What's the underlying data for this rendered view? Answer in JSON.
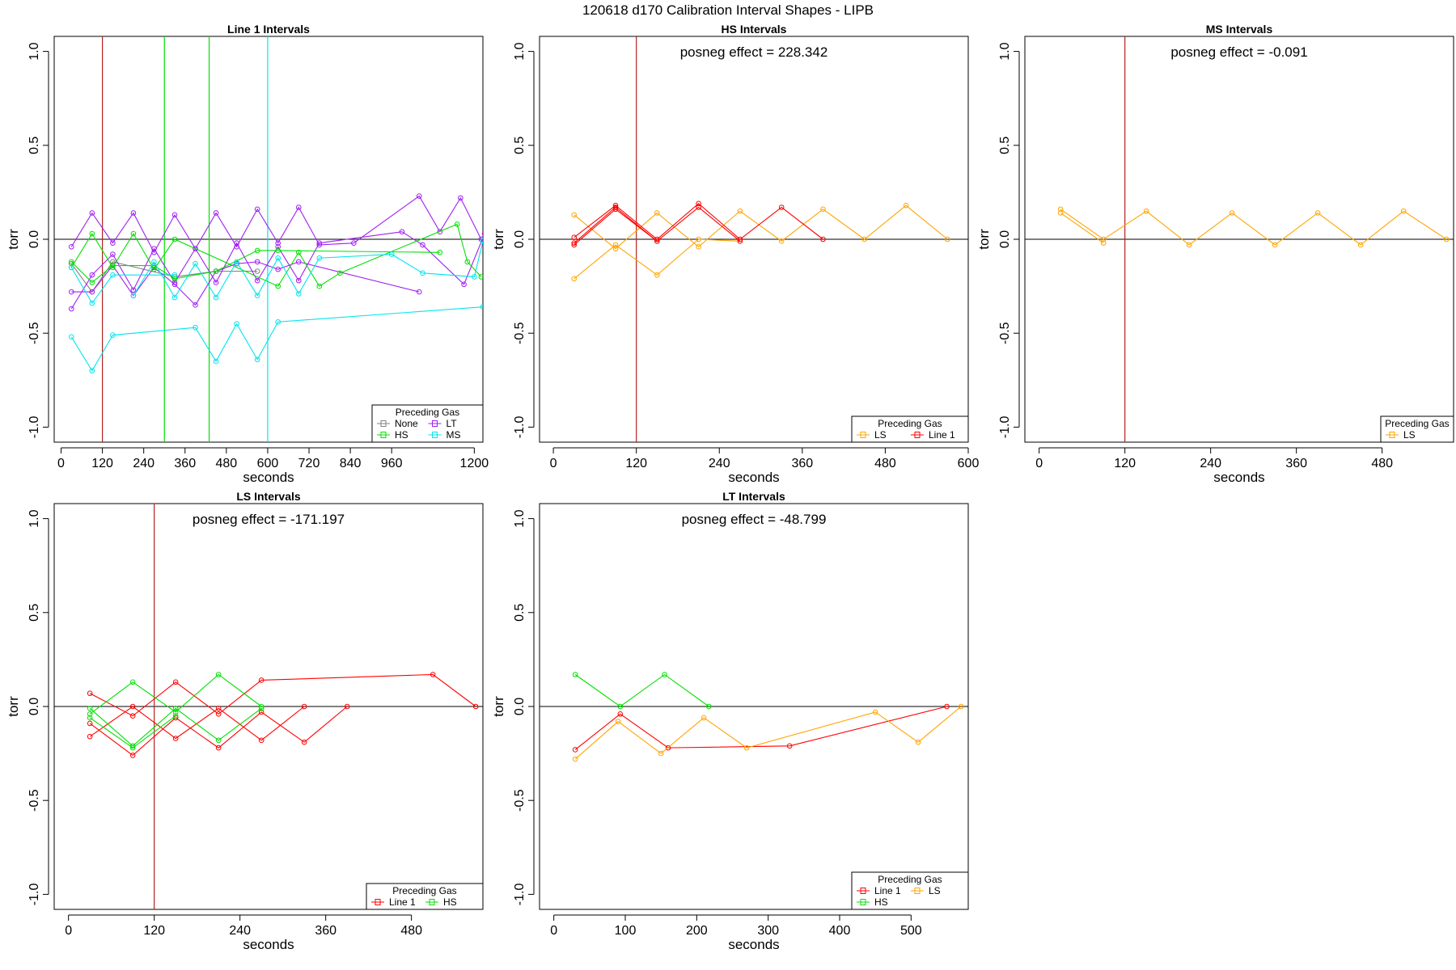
{
  "title": "120618   d170   Calibration Interval Shapes - LIPB",
  "colors": {
    "None": "#808080",
    "LT": "#a020f0",
    "HS": "#00e000",
    "MS": "#00e5ee",
    "LS": "#ffa500",
    "Line 1": "#ff0000",
    "refline": "#b22222"
  },
  "chart_data": [
    {
      "type": "line",
      "title": "Line 1 Intervals",
      "xlabel": "seconds",
      "ylabel": "torr",
      "xlim": [
        -20,
        1225
      ],
      "ylim": [
        -1.08,
        1.08
      ],
      "xticks": [
        0,
        120,
        240,
        360,
        480,
        600,
        720,
        840,
        960,
        1200
      ],
      "yticks": [
        -1.0,
        -0.5,
        0.0,
        0.5,
        1.0
      ],
      "vlines": [
        {
          "x": 120,
          "gas": "Line 1"
        },
        {
          "x": 300,
          "gas": "HS"
        },
        {
          "x": 430,
          "gas": "HS"
        },
        {
          "x": 600,
          "gas": "MS"
        }
      ],
      "annotation": "",
      "legend": {
        "title": "Preceding Gas",
        "items": [
          "None",
          "LT",
          "HS",
          "MS"
        ],
        "ncol": 2
      },
      "series": [
        {
          "gas": "None",
          "points": [
            [
              30,
              -0.13
            ],
            [
              90,
              -0.28
            ],
            [
              150,
              -0.12
            ],
            [
              330,
              -0.2
            ],
            [
              450,
              -0.17
            ],
            [
              570,
              -0.17
            ]
          ]
        },
        {
          "gas": "LT",
          "points": [
            [
              30,
              -0.37
            ],
            [
              90,
              -0.19
            ],
            [
              150,
              -0.08
            ],
            [
              210,
              -0.27
            ],
            [
              270,
              -0.05
            ],
            [
              330,
              -0.23
            ],
            [
              390,
              -0.05
            ],
            [
              450,
              -0.23
            ],
            [
              510,
              -0.02
            ],
            [
              570,
              -0.22
            ],
            [
              630,
              -0.04
            ],
            [
              690,
              -0.22
            ],
            [
              750,
              -0.02
            ],
            [
              990,
              0.04
            ],
            [
              1050,
              -0.03
            ],
            [
              1170,
              -0.24
            ],
            [
              1230,
              0.03
            ]
          ]
        },
        {
          "gas": "LT",
          "points": [
            [
              30,
              -0.04
            ],
            [
              90,
              0.14
            ],
            [
              150,
              -0.02
            ],
            [
              210,
              0.14
            ],
            [
              270,
              -0.07
            ],
            [
              330,
              0.13
            ],
            [
              390,
              -0.05
            ],
            [
              450,
              0.14
            ],
            [
              510,
              -0.04
            ],
            [
              570,
              0.16
            ],
            [
              630,
              -0.02
            ],
            [
              690,
              0.17
            ],
            [
              750,
              -0.03
            ],
            [
              850,
              -0.02
            ],
            [
              1040,
              0.23
            ],
            [
              1100,
              0.04
            ],
            [
              1160,
              0.22
            ],
            [
              1220,
              0.0
            ]
          ]
        },
        {
          "gas": "LT",
          "points": [
            [
              30,
              -0.28
            ],
            [
              90,
              -0.28
            ],
            [
              150,
              -0.14
            ],
            [
              210,
              -0.3
            ],
            [
              270,
              -0.15
            ],
            [
              330,
              -0.24
            ],
            [
              390,
              -0.35
            ],
            [
              450,
              -0.17
            ],
            [
              510,
              -0.13
            ],
            [
              570,
              -0.12
            ],
            [
              630,
              -0.16
            ],
            [
              690,
              -0.12
            ],
            [
              1040,
              -0.28
            ]
          ]
        },
        {
          "gas": "HS",
          "points": [
            [
              30,
              -0.15
            ],
            [
              90,
              0.03
            ],
            [
              150,
              -0.15
            ],
            [
              210,
              0.03
            ],
            [
              270,
              -0.16
            ],
            [
              330,
              0.0
            ],
            [
              630,
              -0.25
            ],
            [
              690,
              -0.07
            ],
            [
              750,
              -0.25
            ],
            [
              810,
              -0.18
            ],
            [
              1150,
              0.08
            ],
            [
              1180,
              -0.12
            ],
            [
              1220,
              -0.2
            ]
          ]
        },
        {
          "gas": "HS",
          "points": [
            [
              30,
              -0.12
            ],
            [
              90,
              -0.23
            ],
            [
              150,
              -0.14
            ],
            [
              270,
              -0.14
            ],
            [
              330,
              -0.21
            ],
            [
              450,
              -0.17
            ],
            [
              570,
              -0.06
            ],
            [
              630,
              -0.06
            ],
            [
              1100,
              -0.07
            ]
          ]
        },
        {
          "gas": "MS",
          "points": [
            [
              30,
              -0.15
            ],
            [
              90,
              -0.34
            ],
            [
              150,
              -0.19
            ],
            [
              330,
              -0.19
            ]
          ]
        },
        {
          "gas": "MS",
          "points": [
            [
              30,
              -0.52
            ],
            [
              90,
              -0.7
            ],
            [
              150,
              -0.51
            ],
            [
              390,
              -0.47
            ],
            [
              450,
              -0.65
            ],
            [
              510,
              -0.45
            ],
            [
              570,
              -0.64
            ],
            [
              630,
              -0.44
            ],
            [
              1225,
              -0.36
            ]
          ]
        },
        {
          "gas": "MS",
          "points": [
            [
              210,
              -0.3
            ],
            [
              270,
              -0.12
            ],
            [
              330,
              -0.31
            ],
            [
              390,
              -0.13
            ],
            [
              450,
              -0.31
            ],
            [
              510,
              -0.12
            ],
            [
              570,
              -0.3
            ],
            [
              630,
              -0.1
            ],
            [
              690,
              -0.29
            ],
            [
              750,
              -0.1
            ],
            [
              960,
              -0.08
            ],
            [
              1050,
              -0.18
            ],
            [
              1200,
              -0.2
            ],
            [
              1225,
              -0.01
            ]
          ]
        }
      ]
    },
    {
      "type": "line",
      "title": "HS Intervals",
      "xlabel": "seconds",
      "ylabel": "torr",
      "xlim": [
        -20,
        600
      ],
      "ylim": [
        -1.08,
        1.08
      ],
      "xticks": [
        0,
        120,
        240,
        360,
        480,
        600
      ],
      "yticks": [
        -1.0,
        -0.5,
        0.0,
        0.5,
        1.0
      ],
      "vlines": [
        {
          "x": 120,
          "gas": "Line 1"
        }
      ],
      "annotation": "posneg effect = 228.342",
      "legend": {
        "title": "Preceding Gas",
        "items": [
          "LS",
          "Line 1"
        ],
        "ncol": 2
      },
      "series": [
        {
          "gas": "LS",
          "points": [
            [
              30,
              0.13
            ],
            [
              90,
              -0.05
            ],
            [
              150,
              0.14
            ],
            [
              210,
              -0.04
            ],
            [
              270,
              0.15
            ],
            [
              330,
              -0.01
            ],
            [
              390,
              0.16
            ],
            [
              450,
              0.0
            ],
            [
              510,
              0.18
            ],
            [
              570,
              0.0
            ]
          ]
        },
        {
          "gas": "LS",
          "points": [
            [
              30,
              -0.21
            ],
            [
              90,
              -0.03
            ],
            [
              150,
              -0.19
            ],
            [
              210,
              0.0
            ],
            [
              270,
              -0.01
            ]
          ]
        },
        {
          "gas": "Line 1",
          "points": [
            [
              30,
              0.01
            ],
            [
              90,
              0.18
            ],
            [
              150,
              0.0
            ],
            [
              210,
              0.19
            ],
            [
              270,
              0.0
            ],
            [
              330,
              0.17
            ],
            [
              390,
              0.0
            ]
          ]
        },
        {
          "gas": "Line 1",
          "points": [
            [
              30,
              -0.02
            ],
            [
              90,
              0.17
            ],
            [
              150,
              -0.01
            ],
            [
              210,
              0.17
            ],
            [
              270,
              -0.01
            ]
          ]
        },
        {
          "gas": "Line 1",
          "points": [
            [
              30,
              -0.03
            ],
            [
              90,
              0.16
            ],
            [
              150,
              -0.01
            ]
          ]
        }
      ]
    },
    {
      "type": "line",
      "title": "MS Intervals",
      "xlabel": "seconds",
      "ylabel": "torr",
      "xlim": [
        -20,
        580
      ],
      "ylim": [
        -1.08,
        1.08
      ],
      "xticks": [
        0,
        120,
        240,
        360,
        480
      ],
      "yticks": [
        -1.0,
        -0.5,
        0.0,
        0.5,
        1.0
      ],
      "vlines": [
        {
          "x": 120,
          "gas": "Line 1"
        }
      ],
      "annotation": "posneg effect = -0.091",
      "legend": {
        "title": "Preceding Gas",
        "items": [
          "LS"
        ],
        "ncol": 1
      },
      "series": [
        {
          "gas": "LS",
          "points": [
            [
              30,
              0.16
            ],
            [
              90,
              0.0
            ],
            [
              150,
              0.15
            ],
            [
              210,
              -0.03
            ],
            [
              270,
              0.14
            ],
            [
              330,
              -0.03
            ],
            [
              390,
              0.14
            ],
            [
              450,
              -0.03
            ],
            [
              510,
              0.15
            ],
            [
              570,
              0.0
            ]
          ]
        },
        {
          "gas": "LS",
          "points": [
            [
              30,
              0.14
            ],
            [
              90,
              -0.02
            ]
          ]
        }
      ]
    },
    {
      "type": "line",
      "title": "LS Intervals",
      "xlabel": "seconds",
      "ylabel": "torr",
      "xlim": [
        -20,
        580
      ],
      "ylim": [
        -1.08,
        1.08
      ],
      "xticks": [
        0,
        120,
        240,
        360,
        480
      ],
      "yticks": [
        -1.0,
        -0.5,
        0.0,
        0.5,
        1.0
      ],
      "vlines": [
        {
          "x": 120,
          "gas": "Line 1"
        }
      ],
      "annotation": "posneg effect = -171.197",
      "legend": {
        "title": "Preceding Gas",
        "items": [
          "Line 1",
          "HS"
        ],
        "ncol": 2
      },
      "series": [
        {
          "gas": "Line 1",
          "points": [
            [
              30,
              0.07
            ],
            [
              90,
              -0.05
            ],
            [
              150,
              0.13
            ],
            [
              210,
              -0.04
            ],
            [
              270,
              0.14
            ],
            [
              510,
              0.17
            ],
            [
              570,
              0.0
            ]
          ]
        },
        {
          "gas": "Line 1",
          "points": [
            [
              30,
              -0.09
            ],
            [
              90,
              -0.26
            ],
            [
              150,
              -0.06
            ],
            [
              210,
              -0.22
            ],
            [
              270,
              -0.03
            ],
            [
              330,
              -0.19
            ],
            [
              390,
              0.0
            ]
          ]
        },
        {
          "gas": "Line 1",
          "points": [
            [
              30,
              -0.16
            ],
            [
              90,
              0.0
            ],
            [
              150,
              -0.17
            ],
            [
              210,
              -0.01
            ],
            [
              270,
              -0.18
            ],
            [
              330,
              0.0
            ]
          ]
        },
        {
          "gas": "HS",
          "points": [
            [
              30,
              -0.01
            ],
            [
              90,
              -0.21
            ],
            [
              150,
              -0.01
            ],
            [
              210,
              -0.18
            ],
            [
              270,
              -0.01
            ]
          ]
        },
        {
          "gas": "HS",
          "points": [
            [
              30,
              -0.04
            ],
            [
              90,
              0.13
            ],
            [
              150,
              -0.03
            ],
            [
              210,
              0.17
            ],
            [
              270,
              0.0
            ]
          ]
        },
        {
          "gas": "HS",
          "points": [
            [
              30,
              -0.06
            ],
            [
              90,
              -0.22
            ],
            [
              150,
              -0.05
            ]
          ]
        }
      ]
    },
    {
      "type": "line",
      "title": "LT Intervals",
      "xlabel": "seconds",
      "ylabel": "torr",
      "xlim": [
        -20,
        580
      ],
      "ylim": [
        -1.08,
        1.08
      ],
      "xticks": [
        0,
        100,
        200,
        300,
        400,
        500
      ],
      "yticks": [
        -1.0,
        -0.5,
        0.0,
        0.5,
        1.0
      ],
      "vlines": [],
      "annotation": "posneg effect = -48.799",
      "legend": {
        "title": "Preceding Gas",
        "items": [
          "Line 1",
          "LS",
          "HS"
        ],
        "ncol": 2
      },
      "series": [
        {
          "gas": "Line 1",
          "points": [
            [
              30,
              -0.23
            ],
            [
              93,
              -0.04
            ],
            [
              160,
              -0.22
            ],
            [
              330,
              -0.21
            ],
            [
              550,
              0.0
            ]
          ]
        },
        {
          "gas": "LS",
          "points": [
            [
              30,
              -0.28
            ],
            [
              90,
              -0.08
            ],
            [
              150,
              -0.25
            ],
            [
              210,
              -0.06
            ],
            [
              270,
              -0.22
            ],
            [
              450,
              -0.03
            ],
            [
              510,
              -0.19
            ],
            [
              570,
              0.0
            ]
          ]
        },
        {
          "gas": "HS",
          "points": [
            [
              30,
              0.17
            ],
            [
              93,
              0.0
            ],
            [
              155,
              0.17
            ],
            [
              217,
              0.0
            ]
          ]
        }
      ]
    }
  ]
}
